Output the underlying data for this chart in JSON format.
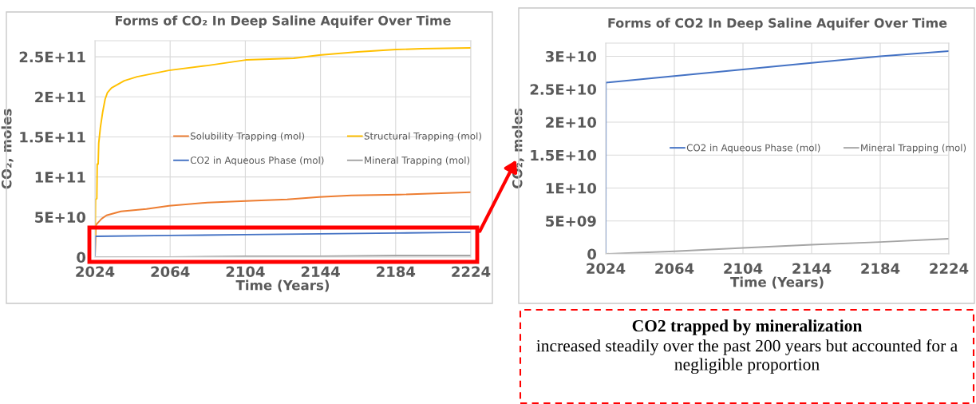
{
  "chart_data": [
    {
      "type": "line",
      "title": "Forms of CO₂ In Deep Saline Aquifer Over Time",
      "xlabel": "Time (Years)",
      "ylabel": "CO₂, moles",
      "xlim": [
        2024,
        2224
      ],
      "xticks": [
        2024,
        2064,
        2104,
        2144,
        2184,
        2224
      ],
      "ylim": [
        0,
        270000000000
      ],
      "yticks": [
        {
          "value": 0,
          "label": "0"
        },
        {
          "value": 50000000000,
          "label": "5E+10"
        },
        {
          "value": 100000000000,
          "label": "1E+11"
        },
        {
          "value": 150000000000,
          "label": "1.5E+11"
        },
        {
          "value": 200000000000,
          "label": "2E+11"
        },
        {
          "value": 250000000000,
          "label": "2.5E+11"
        }
      ],
      "grid": true,
      "legend": "center",
      "series": [
        {
          "name": "Solubility Trapping (mol)",
          "color": "#ed7d31",
          "x": [
            2024,
            2024.5,
            2025.2,
            2027.6,
            2030.1,
            2037.8,
            2051.4,
            2063.4,
            2083.8,
            2104.2,
            2126.3,
            2143.3,
            2160.3,
            2185.8,
            2224
          ],
          "values": [
            0,
            40000000000,
            42000000000,
            48000000000,
            52000000000,
            57000000000,
            60000000000,
            64000000000,
            68000000000,
            70000000000,
            72000000000,
            75000000000,
            77000000000,
            78000000000,
            81000000000
          ]
        },
        {
          "name": "Structural Trapping (mol)",
          "color": "#ffc000",
          "x": [
            2024,
            2024.3,
            2025.0,
            2025.2,
            2025.7,
            2026.0,
            2026.9,
            2028.1,
            2029.4,
            2030.6,
            2032.8,
            2039.6,
            2046.4,
            2063.4,
            2083.8,
            2104.2,
            2129.7,
            2143.3,
            2163.7,
            2184.1,
            2197.7,
            2224
          ],
          "values": [
            0,
            72000000000,
            73000000000,
            116000000000,
            116000000000,
            142000000000,
            162000000000,
            181000000000,
            197000000000,
            205000000000,
            211000000000,
            220000000000,
            225000000000,
            233000000000,
            239000000000,
            246000000000,
            248000000000,
            252000000000,
            256000000000,
            259000000000,
            260000000000,
            261000000000
          ]
        },
        {
          "name": "CO2 in Aqueous Phase (mol)",
          "color": "#4472c4",
          "x": [
            2024,
            2024.1,
            2064,
            2104,
            2144,
            2184,
            2224
          ],
          "values": [
            0,
            26000000000,
            27000000000,
            28000000000,
            29000000000,
            30000000000,
            31000000000
          ]
        },
        {
          "name": "Mineral Trapping (mol)",
          "color": "#a5a5a5",
          "x": [
            2024,
            2064,
            2104,
            2144,
            2184,
            2224
          ],
          "values": [
            0,
            0,
            1000000000,
            1000000000,
            2000000000,
            2000000000
          ]
        }
      ]
    },
    {
      "type": "line",
      "title": "Forms of CO2 In Deep Saline Aquifer Over Time",
      "xlabel": "Time (Years)",
      "ylabel": "CO₂, moles",
      "xlim": [
        2024,
        2224
      ],
      "xticks": [
        2024,
        2064,
        2104,
        2144,
        2184,
        2224
      ],
      "ylim": [
        0,
        32000000000
      ],
      "yticks": [
        {
          "value": 0,
          "label": "0"
        },
        {
          "value": 5000000000,
          "label": "5E+09"
        },
        {
          "value": 10000000000,
          "label": "1E+10"
        },
        {
          "value": 15000000000,
          "label": "1.5E+10"
        },
        {
          "value": 20000000000,
          "label": "2E+10"
        },
        {
          "value": 25000000000,
          "label": "2.5E+10"
        },
        {
          "value": 30000000000,
          "label": "3E+10"
        }
      ],
      "grid": true,
      "legend": "center",
      "annotations": [
        "CO2 trapped by mineralization",
        "increased steadily over the past 200 years but accounted for a negligible proportion"
      ],
      "series": [
        {
          "name": "CO2 in Aqueous Phase (mol)",
          "color": "#4472c4",
          "x": [
            2024,
            2024.1,
            2064,
            2104,
            2144,
            2184,
            2224
          ],
          "values": [
            0,
            26000000000,
            27000000000,
            28000000000,
            29000000000,
            30000000000,
            30800000000
          ]
        },
        {
          "name": "Mineral Trapping (mol)",
          "color": "#a5a5a5",
          "x": [
            2024,
            2064,
            2104,
            2144,
            2184,
            2224
          ],
          "values": [
            0,
            400000000,
            900000000,
            1400000000,
            1800000000,
            2300000000
          ]
        }
      ]
    }
  ]
}
